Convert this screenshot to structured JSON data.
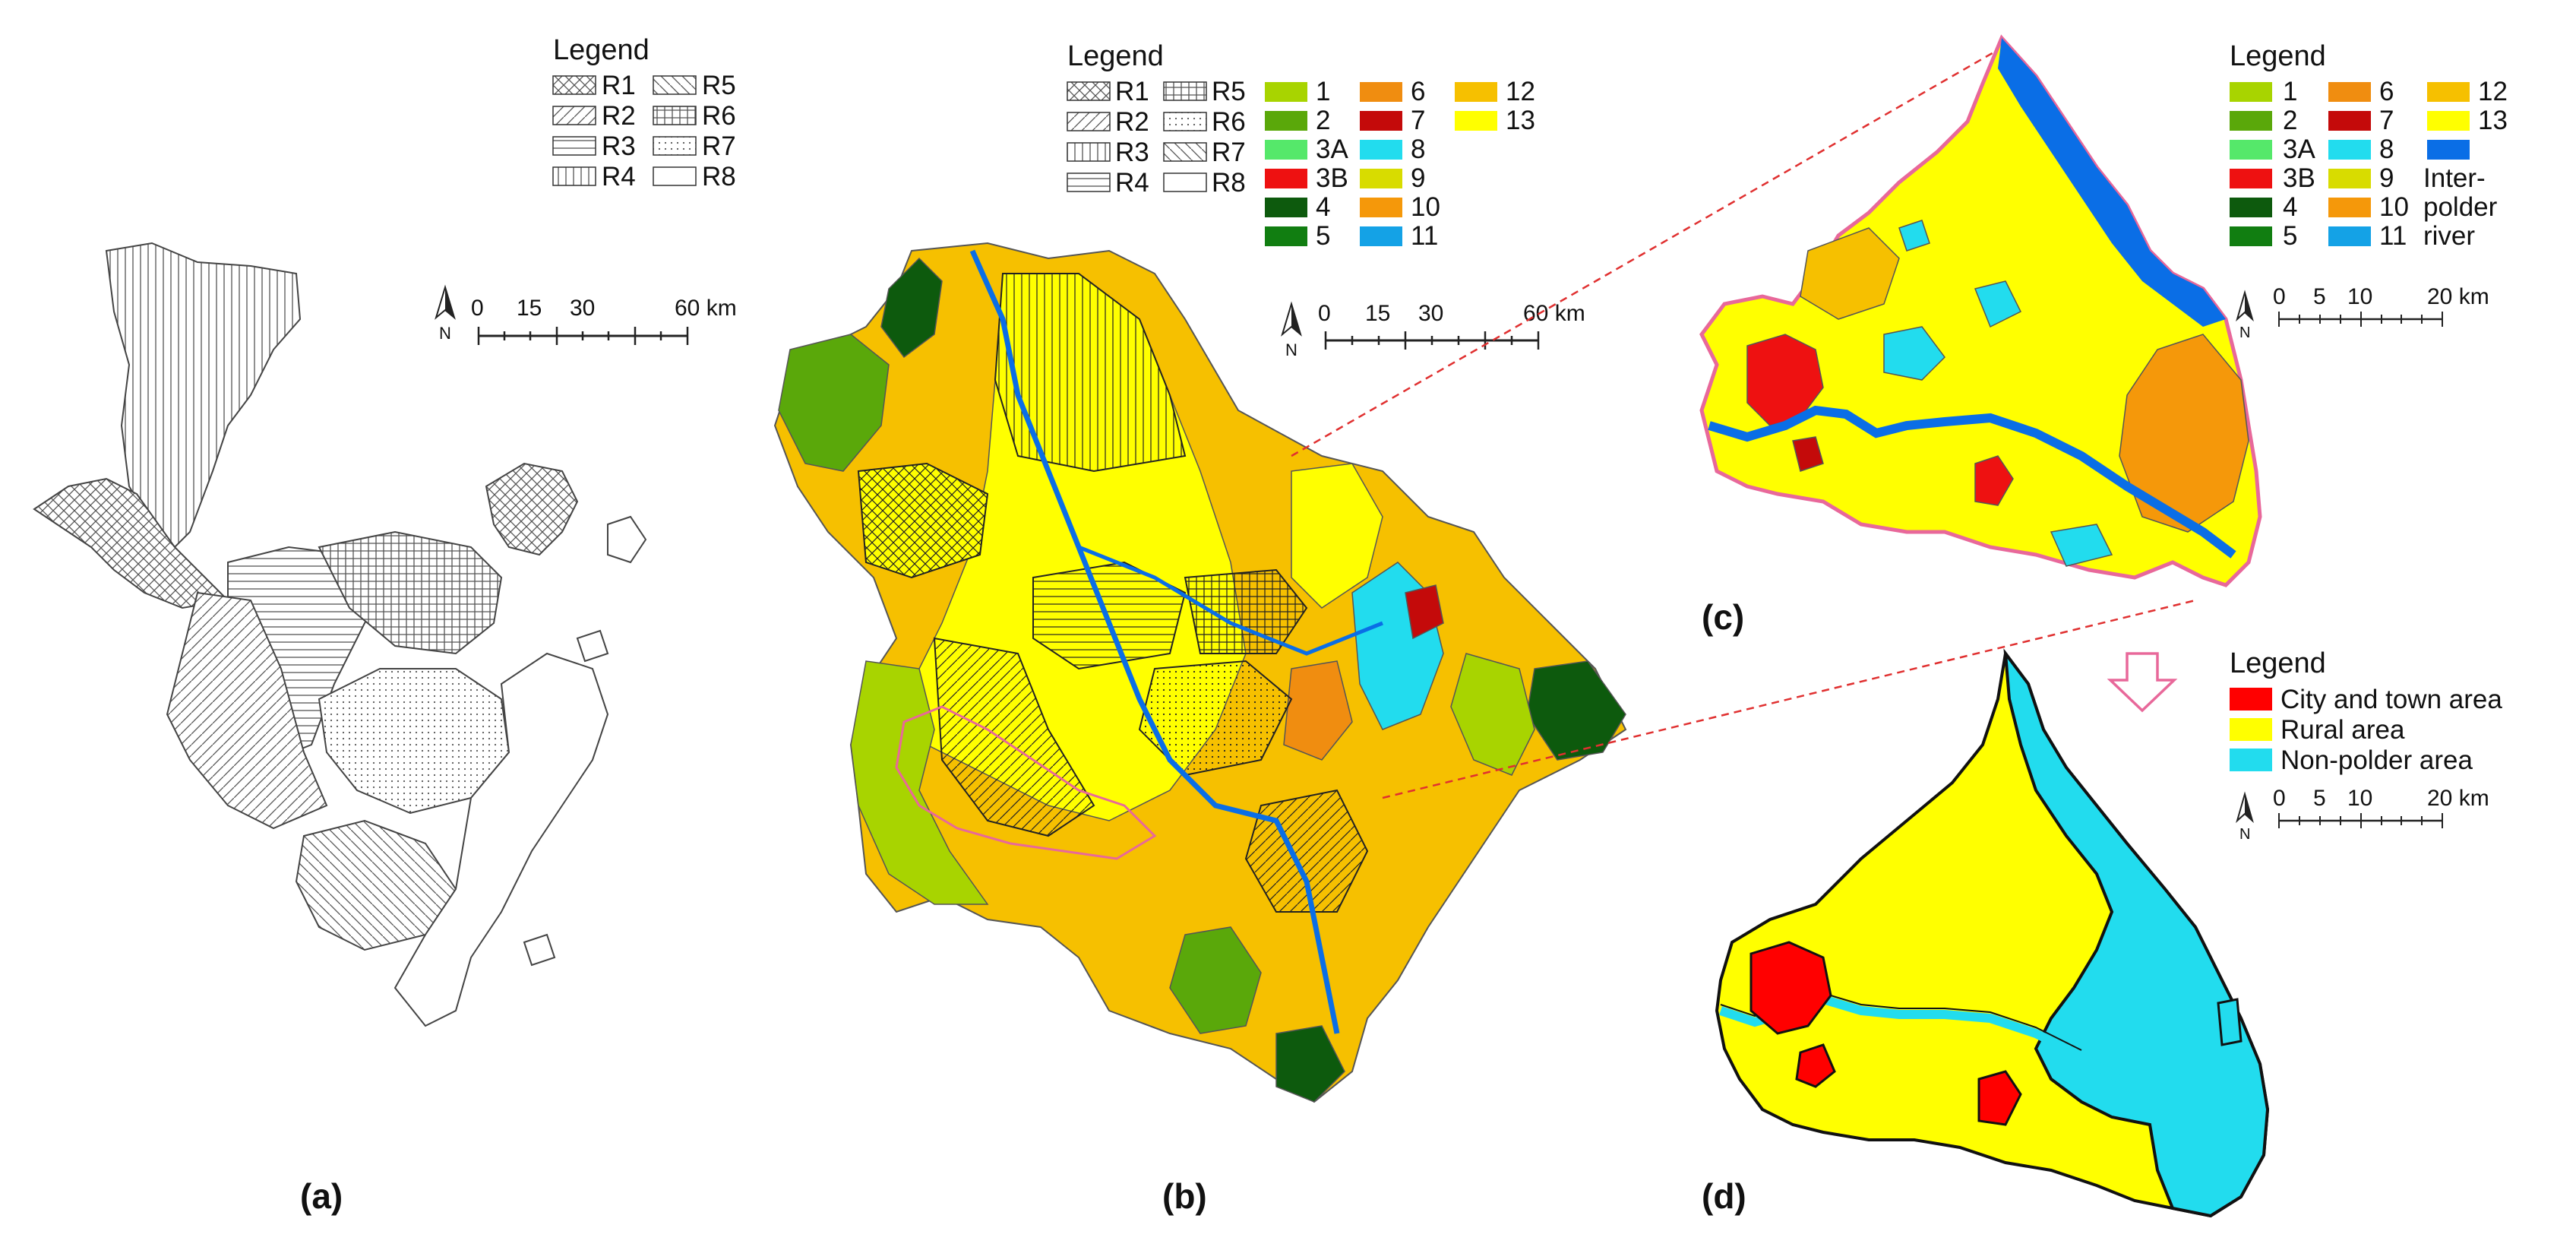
{
  "panels": [
    {
      "id": "a",
      "label": "(a)"
    },
    {
      "id": "b",
      "label": "(b)"
    },
    {
      "id": "c",
      "label": "(c)"
    },
    {
      "id": "d",
      "label": "(d)"
    }
  ],
  "legend_title": "Legend",
  "regions": [
    "R1",
    "R2",
    "R3",
    "R4",
    "R5",
    "R6",
    "R7",
    "R8"
  ],
  "regions_b": [
    "R1",
    "R2",
    "R3",
    "R4",
    "R5",
    "R6",
    "R7",
    "R8"
  ],
  "classes": [
    {
      "code": "1",
      "color": "#a8d400"
    },
    {
      "code": "2",
      "color": "#5aa80a"
    },
    {
      "code": "3A",
      "color": "#55e86a"
    },
    {
      "code": "3B",
      "color": "#ee1111"
    },
    {
      "code": "4",
      "color": "#0d5a0d"
    },
    {
      "code": "5",
      "color": "#117e11"
    },
    {
      "code": "6",
      "color": "#f08d10"
    },
    {
      "code": "7",
      "color": "#c40a0a"
    },
    {
      "code": "8",
      "color": "#22dcee"
    },
    {
      "code": "9",
      "color": "#d8dc00"
    },
    {
      "code": "10",
      "color": "#f5980a"
    },
    {
      "code": "11",
      "color": "#14a2e6"
    },
    {
      "code": "12",
      "color": "#f6c000"
    },
    {
      "code": "13",
      "color": "#ffff00"
    }
  ],
  "c_extra": {
    "color": "#0a6ee6",
    "label_lines": [
      "Inter-",
      "polder",
      "river"
    ]
  },
  "legend_d": [
    {
      "label": "City and town area",
      "color": "#ff0000"
    },
    {
      "label": "Rural area",
      "color": "#ffff00"
    },
    {
      "label": "Non-polder area",
      "color": "#22dcee"
    }
  ],
  "scale_a": {
    "ticks": [
      "0",
      "15",
      "30",
      "60 km"
    ]
  },
  "scale_b": {
    "ticks": [
      "0",
      "15",
      "30",
      "60 km"
    ]
  },
  "scale_c": {
    "ticks": [
      "0",
      "5",
      "10",
      "20 km"
    ]
  },
  "scale_d": {
    "ticks": [
      "0",
      "5",
      "10",
      "20 km"
    ]
  },
  "north": "N"
}
